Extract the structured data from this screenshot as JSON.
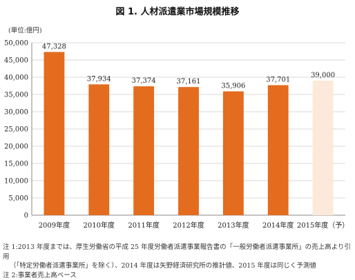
{
  "title": "図 1. 人材派遣業市場規模推移",
  "unit_label": "(単位:億円)",
  "colors": {
    "bar": "#e36c1e",
    "bar_forecast": "#fde9d9",
    "grid": "#d9d9d9",
    "axis": "#888888"
  },
  "chart_data": {
    "type": "bar",
    "categories": [
      "2009年度",
      "2010年度",
      "2011年度",
      "2012年度",
      "2013年度",
      "2014年度",
      "2015年度（予）"
    ],
    "values": [
      47328,
      37934,
      37374,
      37161,
      35906,
      37701,
      39000
    ],
    "value_labels": [
      "47,328",
      "37,934",
      "37,374",
      "37,161",
      "35,906",
      "37,701",
      "39,000"
    ],
    "forecast": [
      false,
      false,
      false,
      false,
      false,
      false,
      true
    ],
    "yticks": [
      0,
      5000,
      10000,
      15000,
      20000,
      25000,
      30000,
      35000,
      40000,
      45000,
      50000
    ],
    "ytick_labels": [
      "0",
      "5,000",
      "10,000",
      "15,000",
      "20,000",
      "25,000",
      "30,000",
      "35,000",
      "40,000",
      "45,000",
      "50,000"
    ],
    "ylim": [
      0,
      50000
    ],
    "grid": true
  },
  "notes": {
    "line1": "注 1:2013 年度までは、厚生労働省の平成 25 年度労働者派遣事業報告書の「一般労働者派遣事業所」の売上高より引用",
    "line2": "（「特定労働者派遣事業所」を除く）、2014 年度は矢野経済研究所の推計値、2015 年度は同じく予測値",
    "line3": "注 2:事業者売上高ベース"
  }
}
